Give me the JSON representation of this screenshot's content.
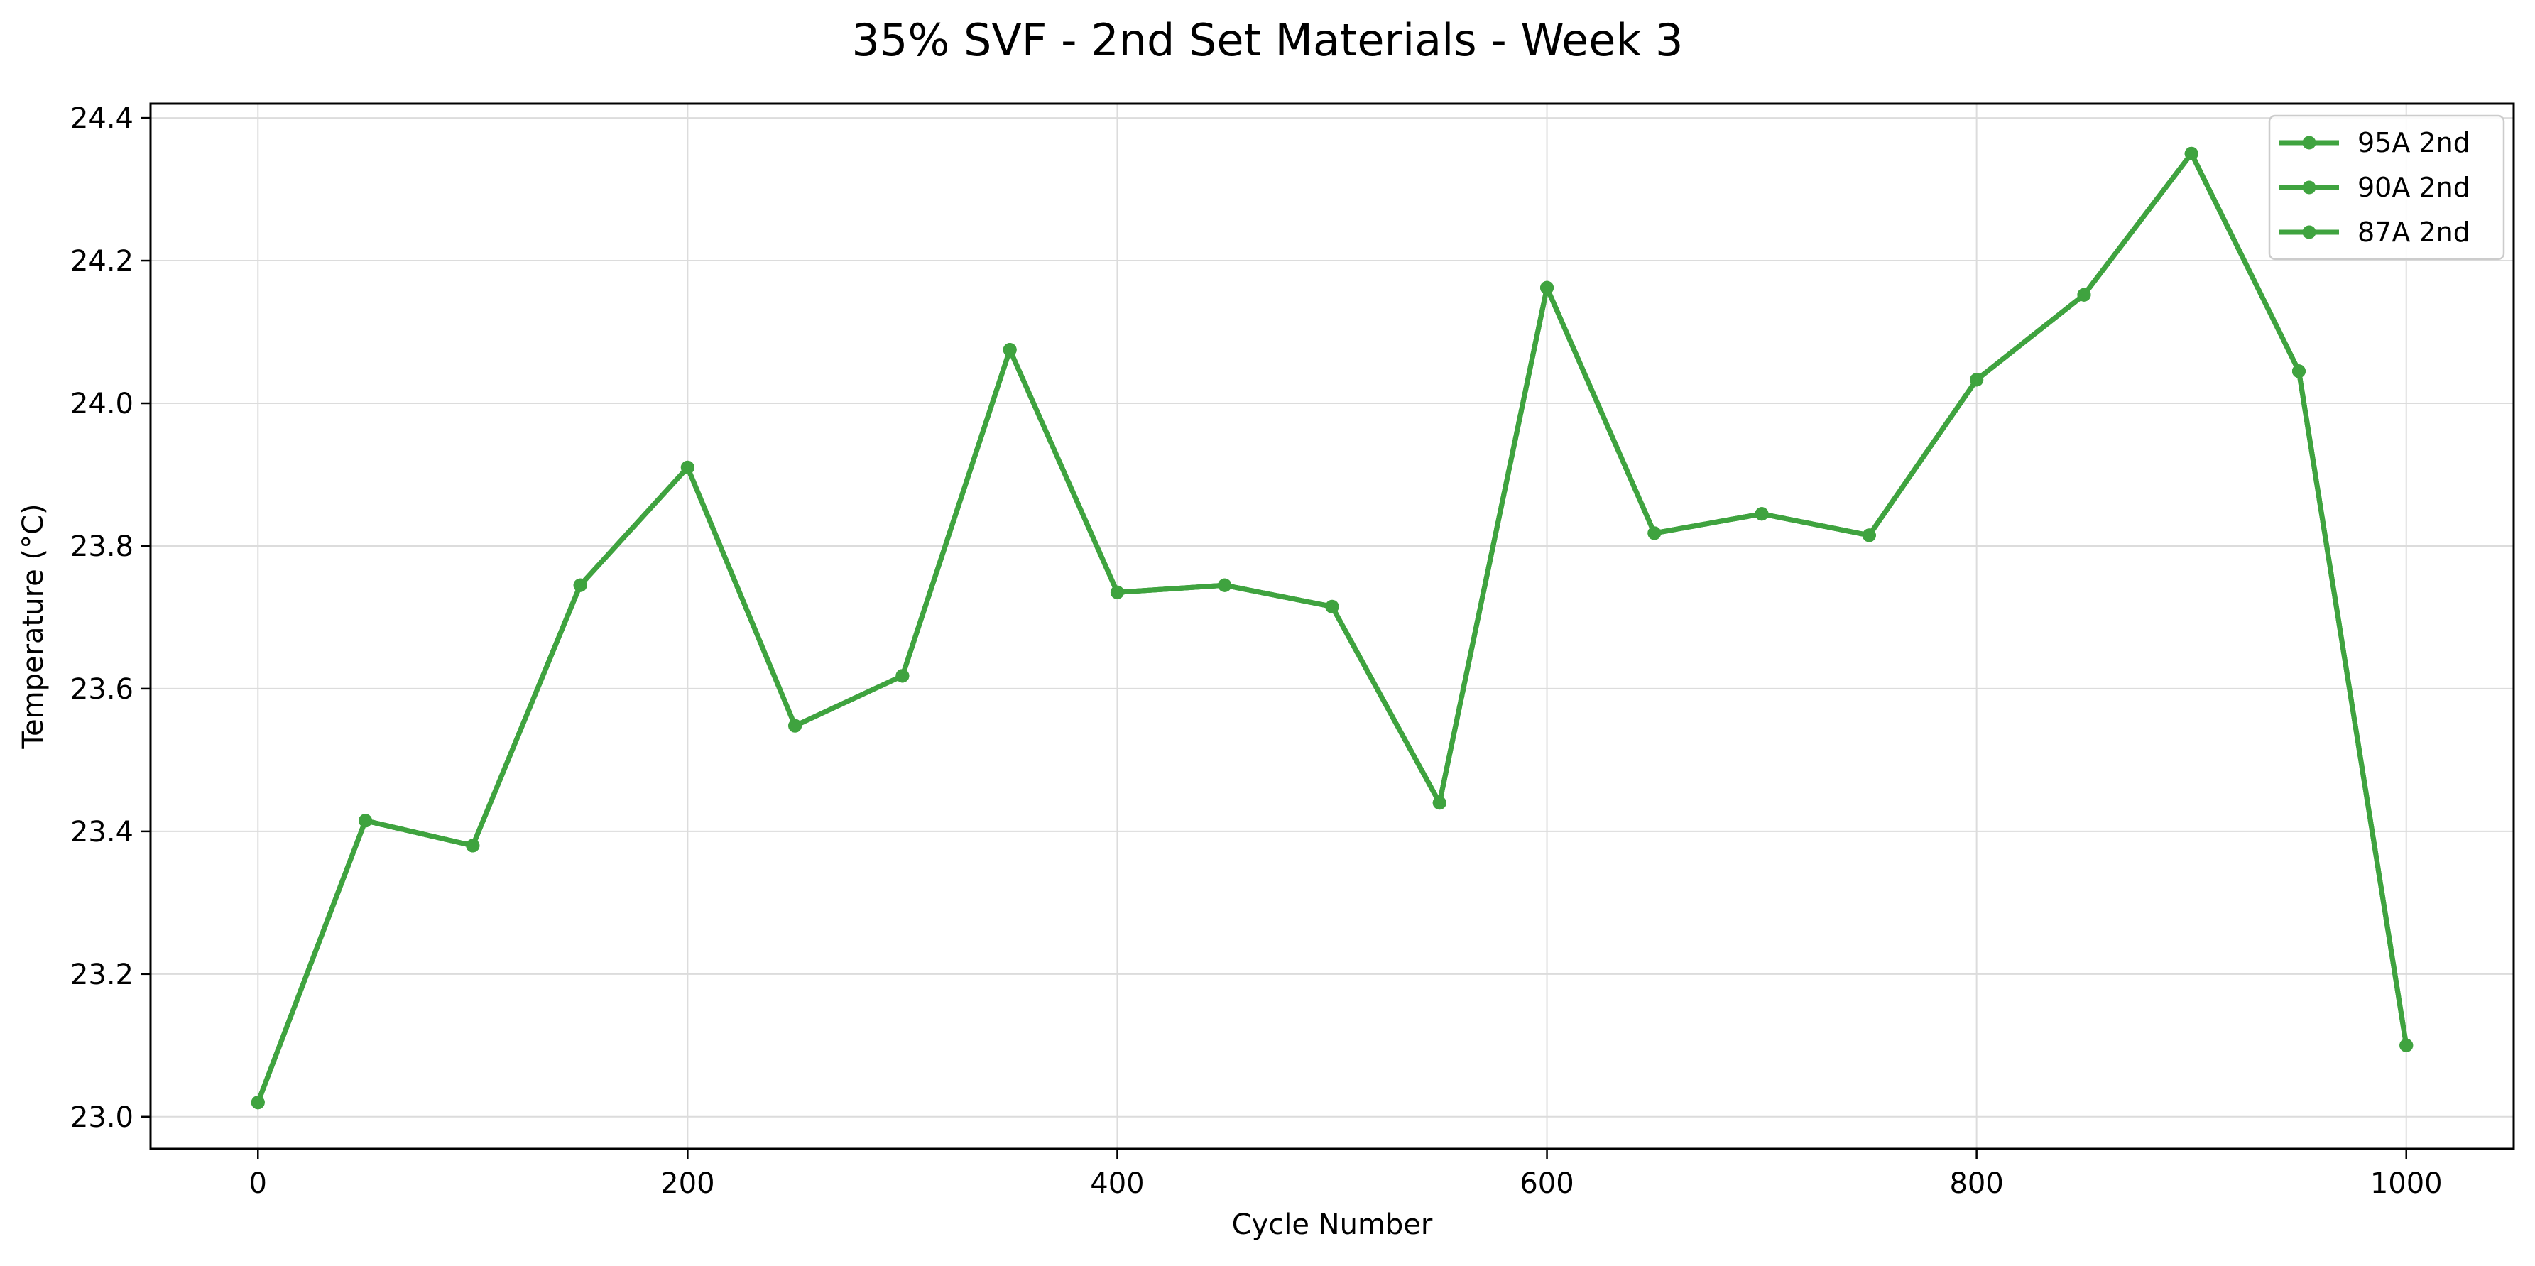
{
  "chart_data": {
    "type": "line",
    "title": "35% SVF - 2nd Set Materials - Week 3",
    "xlabel": "Cycle Number",
    "ylabel": "Temperature (°C)",
    "xlim": [
      -50,
      1050
    ],
    "ylim": [
      22.955,
      24.42
    ],
    "x_ticks": [
      0,
      200,
      400,
      600,
      800,
      1000
    ],
    "y_ticks": [
      23.0,
      23.2,
      23.4,
      23.6,
      23.8,
      24.0,
      24.2,
      24.4
    ],
    "y_tick_decimals": 1,
    "grid": true,
    "legend_position": "top-right",
    "x": [
      0,
      50,
      100,
      150,
      200,
      250,
      300,
      350,
      400,
      450,
      500,
      550,
      600,
      650,
      700,
      750,
      800,
      850,
      900,
      950,
      1000
    ],
    "series": [
      {
        "name": "95A 2nd",
        "color": "#3fa33f",
        "values": [
          23.02,
          23.415,
          23.38,
          23.745,
          23.91,
          23.548,
          23.618,
          24.075,
          23.735,
          23.745,
          23.715,
          23.44,
          24.162,
          23.818,
          23.845,
          23.815,
          24.033,
          24.152,
          24.35,
          24.045,
          23.1
        ]
      },
      {
        "name": "90A 2nd",
        "color": "#3fa33f",
        "values": [
          23.02,
          23.415,
          23.38,
          23.745,
          23.91,
          23.548,
          23.618,
          24.075,
          23.735,
          23.745,
          23.715,
          23.44,
          24.162,
          23.818,
          23.845,
          23.815,
          24.033,
          24.152,
          24.35,
          24.045,
          23.1
        ]
      },
      {
        "name": "87A 2nd",
        "color": "#3fa33f",
        "values": [
          23.02,
          23.415,
          23.38,
          23.745,
          23.91,
          23.548,
          23.618,
          24.075,
          23.735,
          23.745,
          23.715,
          23.44,
          24.162,
          23.818,
          23.845,
          23.815,
          24.033,
          24.152,
          24.35,
          24.045,
          23.1
        ]
      }
    ]
  }
}
